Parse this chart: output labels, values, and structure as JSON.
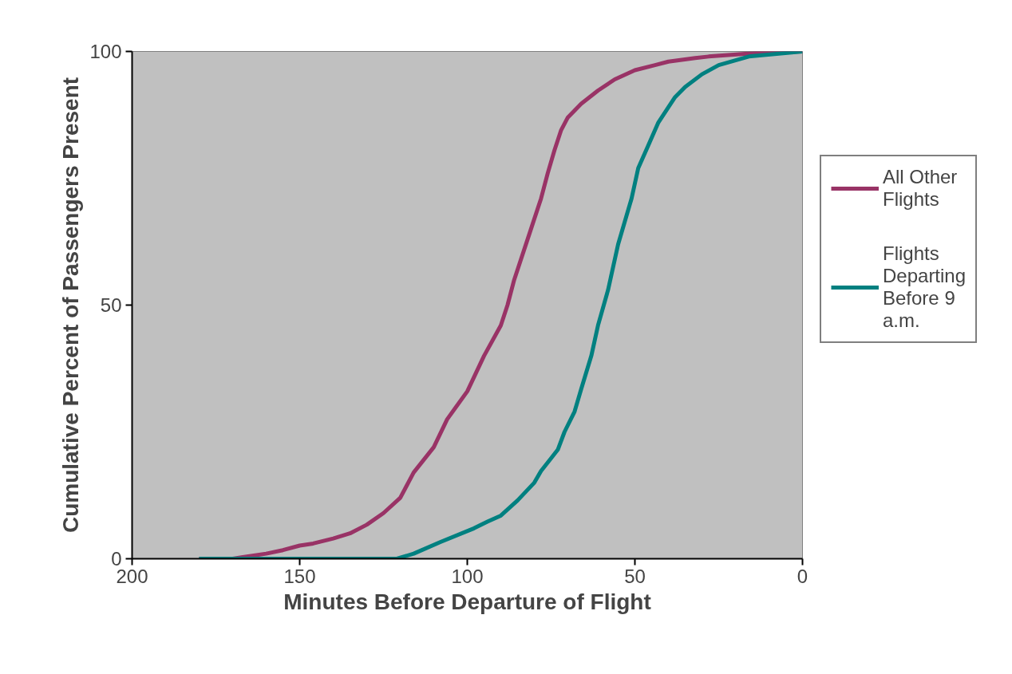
{
  "chart_data": {
    "type": "line",
    "xlabel": "Minutes Before Departure of Flight",
    "ylabel": "Cumulative Percent of Passengers Present",
    "xlim": [
      200,
      0
    ],
    "xticks": [
      200,
      150,
      100,
      50,
      0
    ],
    "ylim": [
      0,
      100
    ],
    "yticks": [
      0,
      50,
      100
    ],
    "grid": false,
    "legend": "right",
    "marker": "none",
    "line_style": "solid",
    "series": [
      {
        "name": "All Other Flights",
        "color": "#993366",
        "x": [
          180,
          170,
          167,
          160,
          155,
          150,
          146,
          140,
          135,
          130,
          125,
          120,
          118,
          116,
          110,
          106,
          100,
          95,
          90,
          88,
          86,
          81,
          78,
          76,
          74,
          72,
          70,
          66,
          61,
          56,
          50,
          44,
          40,
          32,
          28,
          18,
          11,
          0
        ],
        "values": [
          0,
          0,
          0.3,
          1,
          1.7,
          2.6,
          3,
          4,
          5,
          6.7,
          9,
          12,
          14.5,
          17,
          22,
          27.5,
          33,
          40,
          46,
          50,
          55,
          65,
          71,
          76,
          80.5,
          84.5,
          87,
          89.7,
          92.3,
          94.5,
          96.3,
          97.3,
          98,
          98.7,
          99,
          99.5,
          99.8,
          100
        ]
      },
      {
        "name": "Flights Departing Before 9 a.m.",
        "color": "#008080",
        "x": [
          180,
          121,
          116,
          108,
          98,
          94,
          90,
          85,
          80,
          78,
          75,
          73,
          71,
          68,
          66,
          63,
          61,
          58,
          55,
          51,
          49,
          46,
          43,
          40,
          38,
          35,
          30,
          25,
          16,
          0
        ],
        "values": [
          0,
          0,
          1,
          3.3,
          6,
          7.3,
          8.5,
          11.5,
          15,
          17.3,
          19.8,
          21.5,
          25,
          29,
          33.5,
          40,
          46,
          53,
          62,
          71,
          77,
          81.5,
          86,
          89,
          91,
          93,
          95.5,
          97.3,
          99,
          100
        ]
      }
    ]
  }
}
